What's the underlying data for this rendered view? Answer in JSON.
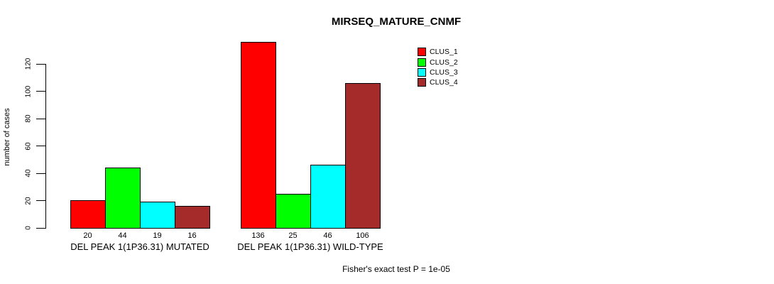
{
  "title": "MIRSEQ_MATURE_CNMF",
  "y_axis_label": "number of cases",
  "footer": "Fisher's exact test P = 1e-05",
  "chart_data": {
    "type": "bar",
    "title": "MIRSEQ_MATURE_CNMF",
    "ylabel": "number of cases",
    "xlabel": "",
    "ylim": [
      0,
      136
    ],
    "yticks": [
      0,
      20,
      40,
      60,
      80,
      100,
      120
    ],
    "grid": false,
    "legend_position": "top-right",
    "series": [
      {
        "name": "CLUS_1",
        "color": "#FF0000",
        "values": [
          20,
          136
        ]
      },
      {
        "name": "CLUS_2",
        "color": "#00FF00",
        "values": [
          44,
          25
        ]
      },
      {
        "name": "CLUS_3",
        "color": "#00FFFF",
        "values": [
          19,
          46
        ]
      },
      {
        "name": "CLUS_4",
        "color": "#A52A2A",
        "values": [
          16,
          106
        ]
      }
    ],
    "groups": [
      {
        "label": "DEL PEAK 1(1P36.31) MUTATED",
        "values": [
          20,
          44,
          19,
          16
        ]
      },
      {
        "label": "DEL PEAK 1(1P36.31) WILD-TYPE",
        "values": [
          136,
          25,
          46,
          106
        ]
      }
    ],
    "annotation": "Fisher's exact test P = 1e-05"
  }
}
